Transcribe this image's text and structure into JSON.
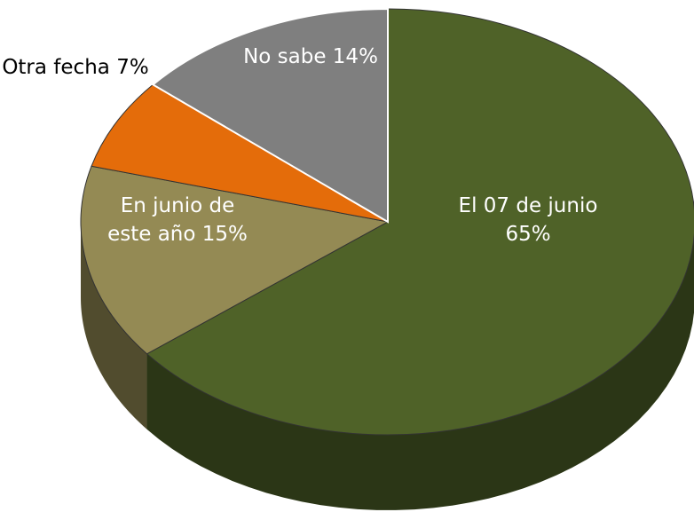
{
  "chart_data": {
    "type": "pie3d",
    "categories": [
      "El 07 de junio",
      "En junio de este año",
      "Otra fecha",
      "No sabe"
    ],
    "values": [
      65,
      15,
      7,
      14
    ],
    "value_labels": [
      "65%",
      "15%",
      "7%",
      "14%"
    ],
    "colors": [
      "#4f6228",
      "#948a54",
      "#e46c0a",
      "#7f7f7f"
    ]
  }
}
